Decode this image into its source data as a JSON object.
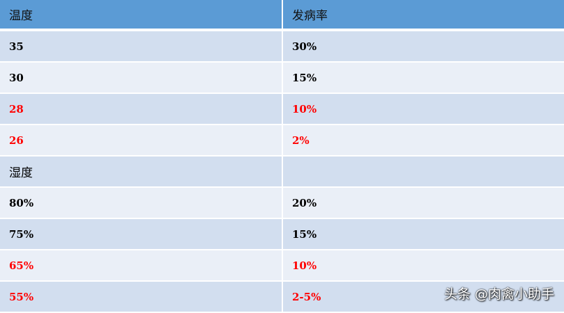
{
  "header": {
    "col1": "温度",
    "col2": "发病率"
  },
  "rows": [
    {
      "c1": "35",
      "c2": "30%",
      "highlight": false
    },
    {
      "c1": "30",
      "c2": "15%",
      "highlight": false
    },
    {
      "c1": "28",
      "c2": "10%",
      "highlight": true
    },
    {
      "c1": "26",
      "c2": "2%",
      "highlight": true
    },
    {
      "c1": "湿度",
      "c2": "",
      "highlight": false
    },
    {
      "c1": "80%",
      "c2": "20%",
      "highlight": false
    },
    {
      "c1": "75%",
      "c2": "15%",
      "highlight": false
    },
    {
      "c1": "65%",
      "c2": "10%",
      "highlight": true
    },
    {
      "c1": "55%",
      "c2": "2-5%",
      "highlight": true
    }
  ],
  "watermark": "头条 @肉禽小助手",
  "colors": {
    "header": "#5b9bd5",
    "row_dark": "#d2deef",
    "row_light": "#eaeff7",
    "highlight_text": "#ff0000"
  }
}
